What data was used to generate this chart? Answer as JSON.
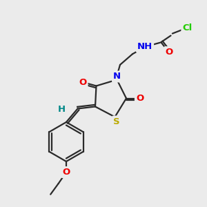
{
  "bg_color": "#ebebeb",
  "bond_color": "#2a2a2a",
  "atom_colors": {
    "N": "#0000ee",
    "O": "#ee0000",
    "S": "#bbaa00",
    "Cl": "#22cc00",
    "H_teal": "#008888",
    "C": "#2a2a2a"
  },
  "lw": 1.6,
  "fs": 9.5
}
